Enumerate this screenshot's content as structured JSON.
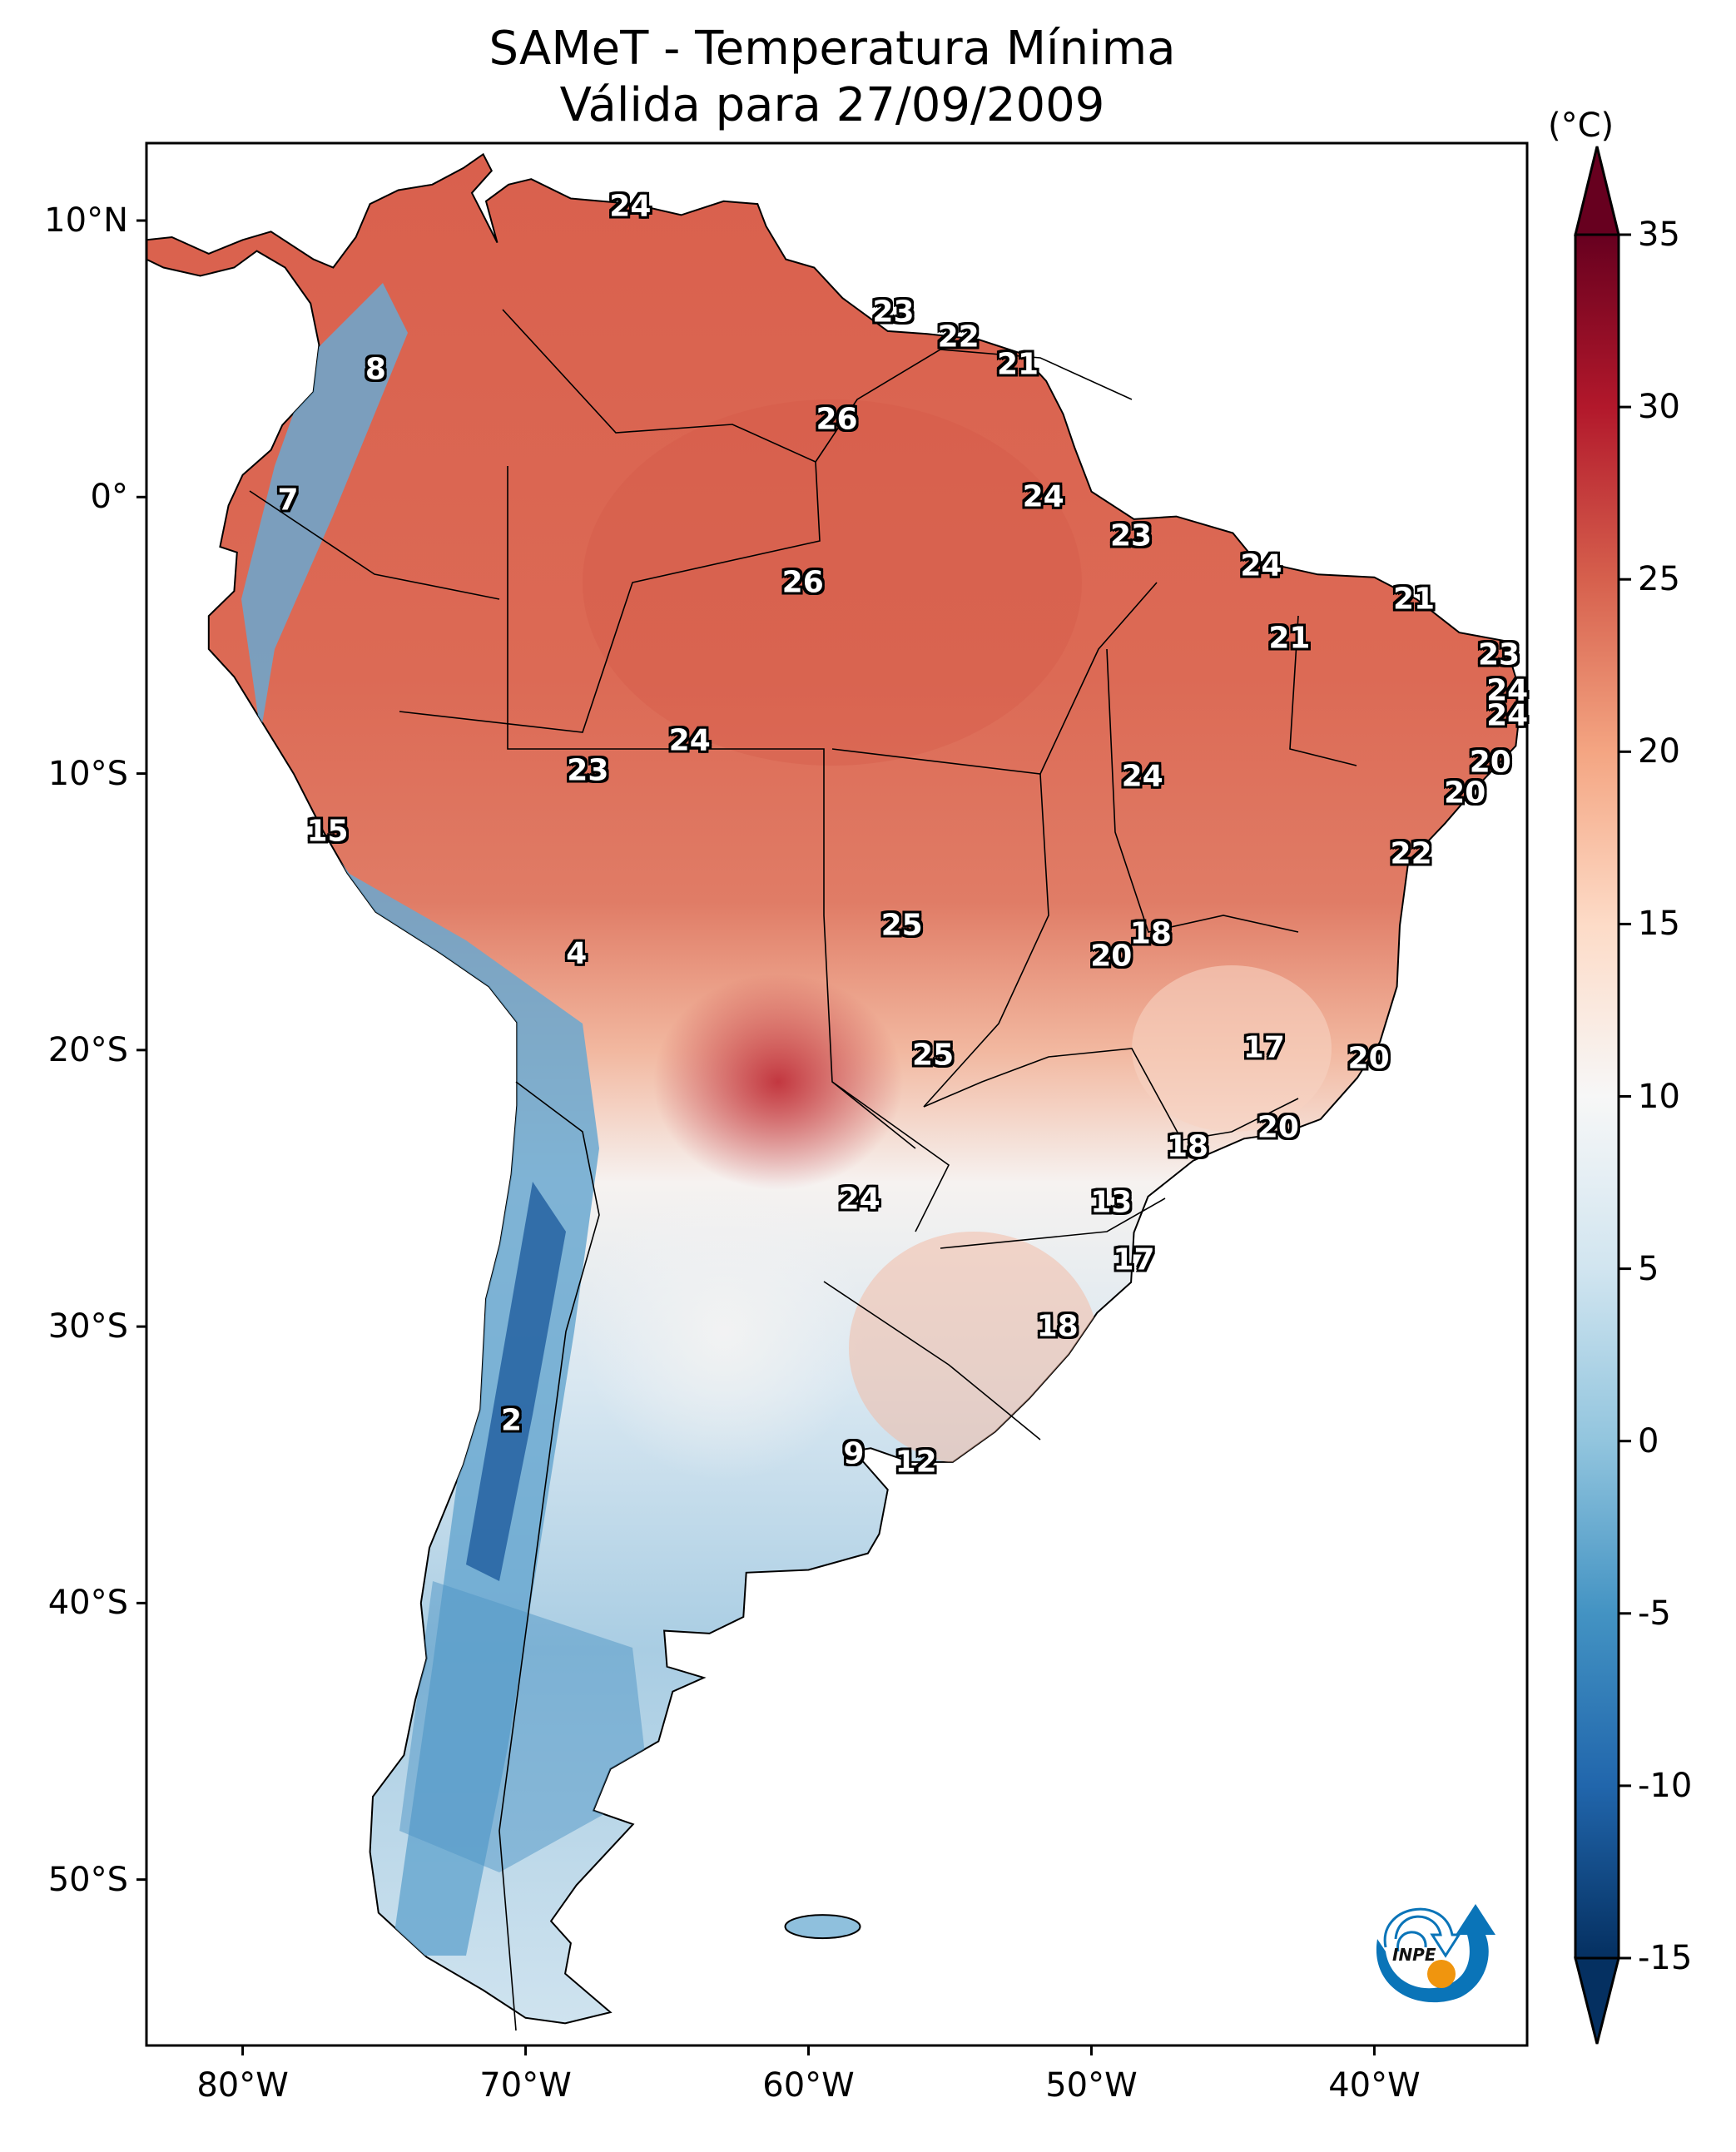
{
  "chart_data": {
    "type": "heatmap",
    "title": "SAMeT - Temperatura Mínima",
    "subtitle": "Válida para 27/09/2009",
    "xlabel": "",
    "ylabel": "",
    "x_ticks": [
      "80°W",
      "70°W",
      "60°W",
      "50°W",
      "40°W"
    ],
    "x_tick_values": [
      -80,
      -70,
      -60,
      -50,
      -40
    ],
    "y_ticks": [
      "10°N",
      "0°",
      "10°S",
      "20°S",
      "30°S",
      "40°S",
      "50°S"
    ],
    "y_tick_values": [
      10,
      0,
      -10,
      -20,
      -30,
      -40,
      -50
    ],
    "xlim": [
      -83.4,
      -34.6
    ],
    "ylim": [
      -56.0,
      12.8
    ],
    "colorbar": {
      "unit": "(°C)",
      "ticks": [
        "35",
        "30",
        "25",
        "20",
        "15",
        "10",
        "5",
        "0",
        "-5",
        "-10",
        "-15"
      ],
      "tick_values": [
        35,
        30,
        25,
        20,
        15,
        10,
        5,
        0,
        -5,
        -10,
        -15
      ],
      "range": [
        -15,
        35
      ],
      "extend": "both",
      "colormap": "RdBu_r",
      "colors": [
        "#053061",
        "#2166ac",
        "#4393c3",
        "#92c5de",
        "#d1e5f0",
        "#f7f7f7",
        "#fddbc7",
        "#f4a582",
        "#d6604d",
        "#b2182b",
        "#67001f"
      ]
    },
    "station_labels": [
      {
        "value": "24",
        "lon": -66.3,
        "lat": 10.5
      },
      {
        "value": "8",
        "lon": -75.3,
        "lat": 4.6
      },
      {
        "value": "7",
        "lon": -78.4,
        "lat": -0.1
      },
      {
        "value": "23",
        "lon": -57.0,
        "lat": 6.7
      },
      {
        "value": "22",
        "lon": -54.7,
        "lat": 5.8
      },
      {
        "value": "21",
        "lon": -52.6,
        "lat": 4.8
      },
      {
        "value": "26",
        "lon": -59.0,
        "lat": 2.8
      },
      {
        "value": "24",
        "lon": -51.7,
        "lat": 0.0
      },
      {
        "value": "23",
        "lon": -48.6,
        "lat": -1.4
      },
      {
        "value": "24",
        "lon": -44.0,
        "lat": -2.5
      },
      {
        "value": "21",
        "lon": -38.6,
        "lat": -3.7
      },
      {
        "value": "21",
        "lon": -43.0,
        "lat": -5.1
      },
      {
        "value": "26",
        "lon": -60.2,
        "lat": -3.1
      },
      {
        "value": "23",
        "lon": -35.6,
        "lat": -5.7
      },
      {
        "value": "24",
        "lon": -35.3,
        "lat": -7.0
      },
      {
        "value": "24",
        "lon": -35.3,
        "lat": -7.9
      },
      {
        "value": "20",
        "lon": -35.9,
        "lat": -9.6
      },
      {
        "value": "20",
        "lon": -36.8,
        "lat": -10.7
      },
      {
        "value": "22",
        "lon": -38.7,
        "lat": -12.9
      },
      {
        "value": "24",
        "lon": -64.2,
        "lat": -8.8
      },
      {
        "value": "23",
        "lon": -67.8,
        "lat": -9.9
      },
      {
        "value": "24",
        "lon": -48.2,
        "lat": -10.1
      },
      {
        "value": "15",
        "lon": -77.0,
        "lat": -12.1
      },
      {
        "value": "4",
        "lon": -68.2,
        "lat": -16.5
      },
      {
        "value": "25",
        "lon": -56.7,
        "lat": -15.5
      },
      {
        "value": "18",
        "lon": -47.9,
        "lat": -15.8
      },
      {
        "value": "20",
        "lon": -49.3,
        "lat": -16.6
      },
      {
        "value": "25",
        "lon": -55.6,
        "lat": -20.2
      },
      {
        "value": "17",
        "lon": -43.9,
        "lat": -19.9
      },
      {
        "value": "20",
        "lon": -40.2,
        "lat": -20.3
      },
      {
        "value": "18",
        "lon": -46.6,
        "lat": -23.5
      },
      {
        "value": "20",
        "lon": -43.4,
        "lat": -22.8
      },
      {
        "value": "24",
        "lon": -58.2,
        "lat": -25.4
      },
      {
        "value": "13",
        "lon": -49.3,
        "lat": -25.5
      },
      {
        "value": "17",
        "lon": -48.5,
        "lat": -27.6
      },
      {
        "value": "18",
        "lon": -51.2,
        "lat": -30.0
      },
      {
        "value": "2",
        "lon": -70.5,
        "lat": -33.4
      },
      {
        "value": "9",
        "lon": -58.4,
        "lat": -34.6
      },
      {
        "value": "12",
        "lon": -56.2,
        "lat": -34.9
      }
    ],
    "spatial_summary": {
      "max_region": "Paraguay / Chaco, around 27-30°C",
      "min_region": "Andes (Chile/Argentina), around -10°C",
      "grid": false
    }
  },
  "logo": {
    "text": "INPE"
  }
}
